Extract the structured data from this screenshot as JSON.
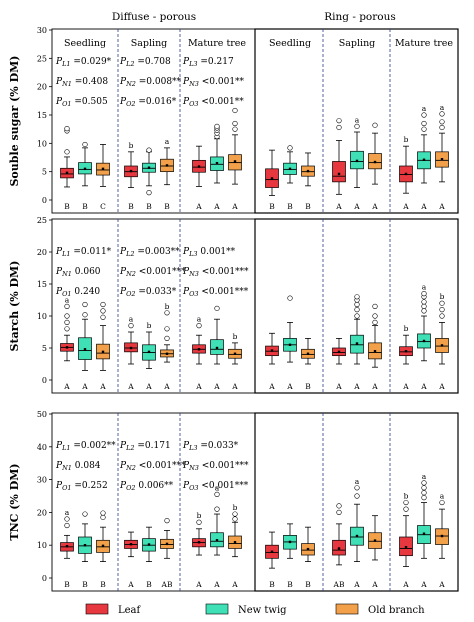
{
  "groups": [
    {
      "label": "Diffuse - porous",
      "stages": [
        "Seedling",
        "Sapling",
        "Mature tree"
      ]
    },
    {
      "label": "Ring - porous",
      "stages": [
        "Seedling",
        "Sapling",
        "Mature tree"
      ]
    }
  ],
  "legend": [
    {
      "label": "Leaf",
      "color": "#e8383f"
    },
    {
      "label": "New twig",
      "color": "#3fe0b5"
    },
    {
      "label": "Old branch",
      "color": "#f2a04a"
    }
  ],
  "chart_data": [
    {
      "type": "box",
      "ylabel": "Souble sugar (% DM)",
      "ylim": [
        0,
        30
      ],
      "yticks": [
        "0",
        "5",
        "10",
        "15",
        "20",
        "25",
        "30"
      ],
      "pvalues": [
        [
          "P_L1 =0.029*",
          "P_N1 =0.408",
          "P_O1 =0.505"
        ],
        [
          "P_L2 =0.708",
          "P_N2 =0.008**",
          "P_O2 =0.016*"
        ],
        [
          "P_L3 =0.217",
          "P_N3 <0.001**",
          "P_O3 <0.001**"
        ]
      ],
      "boxes": [
        {
          "stage": 0,
          "tissue": 0,
          "min": 2.3,
          "q1": 3.9,
          "median": 4.6,
          "q3": 5.6,
          "max": 7.6,
          "mean": 4.8,
          "outliers": [
            8.5,
            12.2,
            12.6
          ],
          "top": "",
          "bottom": "B"
        },
        {
          "stage": 0,
          "tissue": 1,
          "min": 2.5,
          "q1": 4.6,
          "median": 5.4,
          "q3": 6.6,
          "max": 9.2,
          "mean": 5.5,
          "outliers": [
            9.8
          ],
          "top": "",
          "bottom": "B"
        },
        {
          "stage": 0,
          "tissue": 2,
          "min": 2.4,
          "q1": 4.4,
          "median": 5.3,
          "q3": 6.5,
          "max": 9.8,
          "mean": 5.5,
          "outliers": [],
          "top": "",
          "bottom": "C"
        },
        {
          "stage": 1,
          "tissue": 0,
          "min": 2.2,
          "q1": 4.1,
          "median": 5.0,
          "q3": 6.0,
          "max": 8.5,
          "mean": 5.1,
          "outliers": [],
          "top": "b",
          "bottom": "B"
        },
        {
          "stage": 1,
          "tissue": 1,
          "min": 2.5,
          "q1": 4.9,
          "median": 5.6,
          "q3": 6.5,
          "max": 8.5,
          "mean": 5.7,
          "outliers": [
            1.3,
            8.8
          ],
          "top": "",
          "bottom": "B"
        },
        {
          "stage": 1,
          "tissue": 2,
          "min": 2.7,
          "q1": 5.0,
          "median": 6.0,
          "q3": 7.2,
          "max": 9.2,
          "mean": 6.1,
          "outliers": [],
          "top": "a",
          "bottom": "B"
        },
        {
          "stage": 2,
          "tissue": 0,
          "min": 2.4,
          "q1": 4.9,
          "median": 5.8,
          "q3": 7.0,
          "max": 9.5,
          "mean": 5.9,
          "outliers": [],
          "top": "",
          "bottom": "A"
        },
        {
          "stage": 2,
          "tissue": 1,
          "min": 3.0,
          "q1": 5.2,
          "median": 6.3,
          "q3": 7.6,
          "max": 10.8,
          "mean": 6.5,
          "outliers": [
            11.2,
            11.8,
            12.3,
            12.7,
            13.0
          ],
          "top": "",
          "bottom": "A"
        },
        {
          "stage": 2,
          "tissue": 2,
          "min": 2.8,
          "q1": 5.3,
          "median": 6.6,
          "q3": 8.0,
          "max": 11.5,
          "mean": 6.8,
          "outliers": [
            12.5,
            13.5,
            15.8
          ],
          "top": "",
          "bottom": "A"
        },
        {
          "stage": 3,
          "tissue": 0,
          "min": 0.8,
          "q1": 2.2,
          "median": 3.6,
          "q3": 5.5,
          "max": 8.8,
          "mean": 3.8,
          "outliers": [],
          "top": "",
          "bottom": "B"
        },
        {
          "stage": 3,
          "tissue": 1,
          "min": 3.0,
          "q1": 4.5,
          "median": 5.4,
          "q3": 6.5,
          "max": 8.5,
          "mean": 5.5,
          "outliers": [
            9.2
          ],
          "top": "",
          "bottom": "B"
        },
        {
          "stage": 3,
          "tissue": 2,
          "min": 2.5,
          "q1": 4.2,
          "median": 5.0,
          "q3": 6.0,
          "max": 8.3,
          "mean": 5.1,
          "outliers": [],
          "top": "",
          "bottom": "B"
        },
        {
          "stage": 4,
          "tissue": 0,
          "min": 1.0,
          "q1": 3.2,
          "median": 4.2,
          "q3": 6.8,
          "max": 10.5,
          "mean": 4.6,
          "outliers": [
            12.8,
            14.0
          ],
          "top": "",
          "bottom": "A"
        },
        {
          "stage": 4,
          "tissue": 1,
          "min": 2.2,
          "q1": 5.5,
          "median": 6.8,
          "q3": 8.6,
          "max": 12.0,
          "mean": 6.9,
          "outliers": [
            13.0
          ],
          "top": "a",
          "bottom": "A"
        },
        {
          "stage": 4,
          "tissue": 2,
          "min": 2.8,
          "q1": 5.5,
          "median": 6.6,
          "q3": 8.2,
          "max": 11.8,
          "mean": 6.7,
          "outliers": [
            13.2
          ],
          "top": "",
          "bottom": "A"
        },
        {
          "stage": 5,
          "tissue": 0,
          "min": 1.2,
          "q1": 3.2,
          "median": 4.5,
          "q3": 6.0,
          "max": 9.5,
          "mean": 4.6,
          "outliers": [],
          "top": "b",
          "bottom": "A"
        },
        {
          "stage": 5,
          "tissue": 1,
          "min": 3.0,
          "q1": 5.5,
          "median": 7.0,
          "q3": 8.5,
          "max": 11.5,
          "mean": 7.1,
          "outliers": [
            12.5,
            13.5,
            15.0
          ],
          "top": "a",
          "bottom": "A"
        },
        {
          "stage": 5,
          "tissue": 2,
          "min": 3.2,
          "q1": 5.8,
          "median": 7.0,
          "q3": 8.5,
          "max": 11.8,
          "mean": 7.2,
          "outliers": [
            12.8,
            13.8,
            15.2
          ],
          "top": "a",
          "bottom": "A"
        }
      ]
    },
    {
      "type": "box",
      "ylabel": "Starch (% DM)",
      "ylim": [
        0,
        25
      ],
      "yticks": [
        "0",
        "5",
        "10",
        "15",
        "20",
        "25"
      ],
      "pvalues": [
        [
          "P_L1 =0.011*",
          "P_N1  0.060",
          "P_O1  0.240"
        ],
        [
          "P_L2 =0.003**",
          "P_N2 <0.001***",
          "P_O2 =0.033*"
        ],
        [
          "P_L3  0.001**",
          "P_N3 <0.001***",
          "P_O3 <0.001***"
        ]
      ],
      "boxes": [
        {
          "stage": 0,
          "tissue": 0,
          "min": 3.0,
          "q1": 4.5,
          "median": 5.1,
          "q3": 5.7,
          "max": 7.0,
          "mean": 5.1,
          "outliers": [
            8.0,
            9.0,
            10.0,
            11.5
          ],
          "top": "a",
          "bottom": "A"
        },
        {
          "stage": 0,
          "tissue": 1,
          "min": 1.5,
          "q1": 3.2,
          "median": 4.6,
          "q3": 6.6,
          "max": 9.5,
          "mean": 4.8,
          "outliers": [
            10.2,
            11.8
          ],
          "top": "",
          "bottom": "A"
        },
        {
          "stage": 0,
          "tissue": 2,
          "min": 1.5,
          "q1": 3.3,
          "median": 4.2,
          "q3": 5.6,
          "max": 8.5,
          "mean": 4.4,
          "outliers": [
            9.8,
            10.8,
            11.8
          ],
          "top": "",
          "bottom": "A"
        },
        {
          "stage": 1,
          "tissue": 0,
          "min": 2.5,
          "q1": 4.4,
          "median": 5.0,
          "q3": 5.8,
          "max": 7.5,
          "mean": 5.0,
          "outliers": [
            8.5
          ],
          "top": "a",
          "bottom": "A"
        },
        {
          "stage": 1,
          "tissue": 1,
          "min": 1.8,
          "q1": 3.1,
          "median": 4.3,
          "q3": 5.5,
          "max": 7.5,
          "mean": 4.4,
          "outliers": [],
          "top": "b",
          "bottom": "A"
        },
        {
          "stage": 1,
          "tissue": 2,
          "min": 2.8,
          "q1": 3.6,
          "median": 4.1,
          "q3": 4.7,
          "max": 5.5,
          "mean": 4.1,
          "outliers": [
            6.5,
            8.0,
            10.5
          ],
          "top": "b",
          "bottom": "A"
        },
        {
          "stage": 2,
          "tissue": 0,
          "min": 2.5,
          "q1": 4.2,
          "median": 4.8,
          "q3": 5.5,
          "max": 7.0,
          "mean": 4.8,
          "outliers": [
            8.5
          ],
          "top": "a",
          "bottom": "A"
        },
        {
          "stage": 2,
          "tissue": 1,
          "min": 2.5,
          "q1": 4.0,
          "median": 4.8,
          "q3": 6.3,
          "max": 9.5,
          "mean": 5.0,
          "outliers": [
            11.2
          ],
          "top": "",
          "bottom": "A"
        },
        {
          "stage": 2,
          "tissue": 2,
          "min": 2.5,
          "q1": 3.4,
          "median": 4.0,
          "q3": 4.8,
          "max": 5.8,
          "mean": 4.1,
          "outliers": [],
          "top": "b",
          "bottom": "A"
        },
        {
          "stage": 3,
          "tissue": 0,
          "min": 2.5,
          "q1": 3.8,
          "median": 4.5,
          "q3": 5.3,
          "max": 7.3,
          "mean": 4.6,
          "outliers": [],
          "top": "",
          "bottom": "A"
        },
        {
          "stage": 3,
          "tissue": 1,
          "min": 2.8,
          "q1": 4.5,
          "median": 5.5,
          "q3": 6.5,
          "max": 9.0,
          "mean": 5.5,
          "outliers": [
            12.8
          ],
          "top": "",
          "bottom": "A"
        },
        {
          "stage": 3,
          "tissue": 2,
          "min": 2.5,
          "q1": 3.4,
          "median": 4.0,
          "q3": 4.8,
          "max": 6.5,
          "mean": 4.1,
          "outliers": [],
          "top": "",
          "bottom": "B"
        },
        {
          "stage": 4,
          "tissue": 0,
          "min": 2.5,
          "q1": 3.8,
          "median": 4.3,
          "q3": 5.0,
          "max": 6.5,
          "mean": 4.4,
          "outliers": [],
          "top": "",
          "bottom": "A"
        },
        {
          "stage": 4,
          "tissue": 1,
          "min": 2.5,
          "q1": 4.2,
          "median": 5.5,
          "q3": 7.0,
          "max": 9.5,
          "mean": 5.7,
          "outliers": [
            10.0,
            11.0,
            11.8,
            12.5,
            13.0
          ],
          "top": "",
          "bottom": "A"
        },
        {
          "stage": 4,
          "tissue": 2,
          "min": 2.0,
          "q1": 3.3,
          "median": 4.3,
          "q3": 5.8,
          "max": 8.5,
          "mean": 4.5,
          "outliers": [
            9.0,
            10.0,
            11.5
          ],
          "top": "",
          "bottom": "A"
        },
        {
          "stage": 5,
          "tissue": 0,
          "min": 2.5,
          "q1": 3.8,
          "median": 4.4,
          "q3": 5.2,
          "max": 7.0,
          "mean": 4.5,
          "outliers": [],
          "top": "b",
          "bottom": "A"
        },
        {
          "stage": 5,
          "tissue": 1,
          "min": 3.0,
          "q1": 5.0,
          "median": 6.0,
          "q3": 7.2,
          "max": 10.0,
          "mean": 6.1,
          "outliers": [
            10.8,
            11.5,
            12.2,
            13.0,
            13.5
          ],
          "top": "a",
          "bottom": "A"
        },
        {
          "stage": 5,
          "tissue": 2,
          "min": 2.5,
          "q1": 4.3,
          "median": 5.3,
          "q3": 6.5,
          "max": 9.0,
          "mean": 5.4,
          "outliers": [
            10.0,
            11.0,
            12.0
          ],
          "top": "b",
          "bottom": "A"
        }
      ]
    },
    {
      "type": "box",
      "ylabel": "TNC (% DM)",
      "ylim": [
        0,
        50
      ],
      "yticks": [
        "0",
        "10",
        "20",
        "30",
        "40",
        "50"
      ],
      "pvalues": [
        [
          "P_L1 =0.002**",
          "P_N1  0.084",
          "P_O1 =0.252"
        ],
        [
          "P_L2 =0.171",
          "P_N2 <0.001***",
          "P_O2  0.006**"
        ],
        [
          "P_L3 =0.033*",
          "P_N3 <0.001***",
          "P_O3 <0.001***"
        ]
      ],
      "boxes": [
        {
          "stage": 0,
          "tissue": 0,
          "min": 6.0,
          "q1": 8.2,
          "median": 9.5,
          "q3": 10.8,
          "max": 13.0,
          "mean": 9.7,
          "outliers": [
            16.0,
            18.0
          ],
          "top": "a",
          "bottom": "B"
        },
        {
          "stage": 0,
          "tissue": 1,
          "min": 5.0,
          "q1": 7.5,
          "median": 9.8,
          "q3": 12.5,
          "max": 16.5,
          "mean": 10.0,
          "outliers": [
            19.5
          ],
          "top": "",
          "bottom": "B"
        },
        {
          "stage": 0,
          "tissue": 2,
          "min": 5.0,
          "q1": 7.8,
          "median": 9.5,
          "q3": 11.5,
          "max": 15.5,
          "mean": 9.8,
          "outliers": [
            18.5,
            19.8
          ],
          "top": "",
          "bottom": "B"
        },
        {
          "stage": 1,
          "tissue": 0,
          "min": 6.5,
          "q1": 9.0,
          "median": 10.2,
          "q3": 11.5,
          "max": 14.0,
          "mean": 10.3,
          "outliers": [],
          "top": "",
          "bottom": "A"
        },
        {
          "stage": 1,
          "tissue": 1,
          "min": 5.0,
          "q1": 8.2,
          "median": 10.0,
          "q3": 12.0,
          "max": 15.5,
          "mean": 10.2,
          "outliers": [],
          "top": "",
          "bottom": "B"
        },
        {
          "stage": 1,
          "tissue": 2,
          "min": 6.0,
          "q1": 9.0,
          "median": 10.2,
          "q3": 11.8,
          "max": 14.5,
          "mean": 10.4,
          "outliers": [
            17.5
          ],
          "top": "",
          "bottom": "AB"
        },
        {
          "stage": 2,
          "tissue": 0,
          "min": 7.0,
          "q1": 9.5,
          "median": 10.8,
          "q3": 12.0,
          "max": 15.0,
          "mean": 10.9,
          "outliers": [
            17.0
          ],
          "top": "b",
          "bottom": "A"
        },
        {
          "stage": 2,
          "tissue": 1,
          "min": 7.0,
          "q1": 9.5,
          "median": 11.2,
          "q3": 13.8,
          "max": 19.5,
          "mean": 11.5,
          "outliers": [
            21.0,
            25.5
          ],
          "top": "a",
          "bottom": "A"
        },
        {
          "stage": 2,
          "tissue": 2,
          "min": 6.5,
          "q1": 9.0,
          "median": 10.5,
          "q3": 12.8,
          "max": 17.0,
          "mean": 10.9,
          "outliers": [
            18.0,
            19.5
          ],
          "top": "b",
          "bottom": "A"
        },
        {
          "stage": 3,
          "tissue": 0,
          "min": 3.0,
          "q1": 6.0,
          "median": 7.8,
          "q3": 10.0,
          "max": 14.0,
          "mean": 8.0,
          "outliers": [],
          "top": "",
          "bottom": "B"
        },
        {
          "stage": 3,
          "tissue": 1,
          "min": 6.0,
          "q1": 8.8,
          "median": 11.0,
          "q3": 13.0,
          "max": 16.5,
          "mean": 11.0,
          "outliers": [],
          "top": "",
          "bottom": "B"
        },
        {
          "stage": 3,
          "tissue": 2,
          "min": 5.0,
          "q1": 7.0,
          "median": 8.5,
          "q3": 10.5,
          "max": 15.5,
          "mean": 8.8,
          "outliers": [],
          "top": "",
          "bottom": "B"
        },
        {
          "stage": 4,
          "tissue": 0,
          "min": 4.0,
          "q1": 7.0,
          "median": 8.5,
          "q3": 11.5,
          "max": 16.5,
          "mean": 9.0,
          "outliers": [
            20.0,
            22.0
          ],
          "top": "",
          "bottom": "AB"
        },
        {
          "stage": 4,
          "tissue": 1,
          "min": 5.0,
          "q1": 10.0,
          "median": 12.5,
          "q3": 15.5,
          "max": 22.5,
          "mean": 12.8,
          "outliers": [
            25.0,
            27.5
          ],
          "top": "a",
          "bottom": "A"
        },
        {
          "stage": 4,
          "tissue": 2,
          "min": 5.5,
          "q1": 9.0,
          "median": 11.2,
          "q3": 13.8,
          "max": 19.0,
          "mean": 11.4,
          "outliers": [],
          "top": "",
          "bottom": "A"
        },
        {
          "stage": 5,
          "tissue": 0,
          "min": 3.5,
          "q1": 6.8,
          "median": 9.0,
          "q3": 12.5,
          "max": 19.0,
          "mean": 9.4,
          "outliers": [
            21.0,
            23.0
          ],
          "top": "b",
          "bottom": "A"
        },
        {
          "stage": 5,
          "tissue": 1,
          "min": 6.0,
          "q1": 10.5,
          "median": 13.2,
          "q3": 16.0,
          "max": 23.0,
          "mean": 13.5,
          "outliers": [
            24.5,
            26.0,
            27.5,
            29.0
          ],
          "top": "a",
          "bottom": "A"
        },
        {
          "stage": 5,
          "tissue": 2,
          "min": 6.0,
          "q1": 10.2,
          "median": 12.8,
          "q3": 15.0,
          "max": 21.0,
          "mean": 12.8,
          "outliers": [
            23.0
          ],
          "top": "a",
          "bottom": "A"
        }
      ]
    }
  ]
}
